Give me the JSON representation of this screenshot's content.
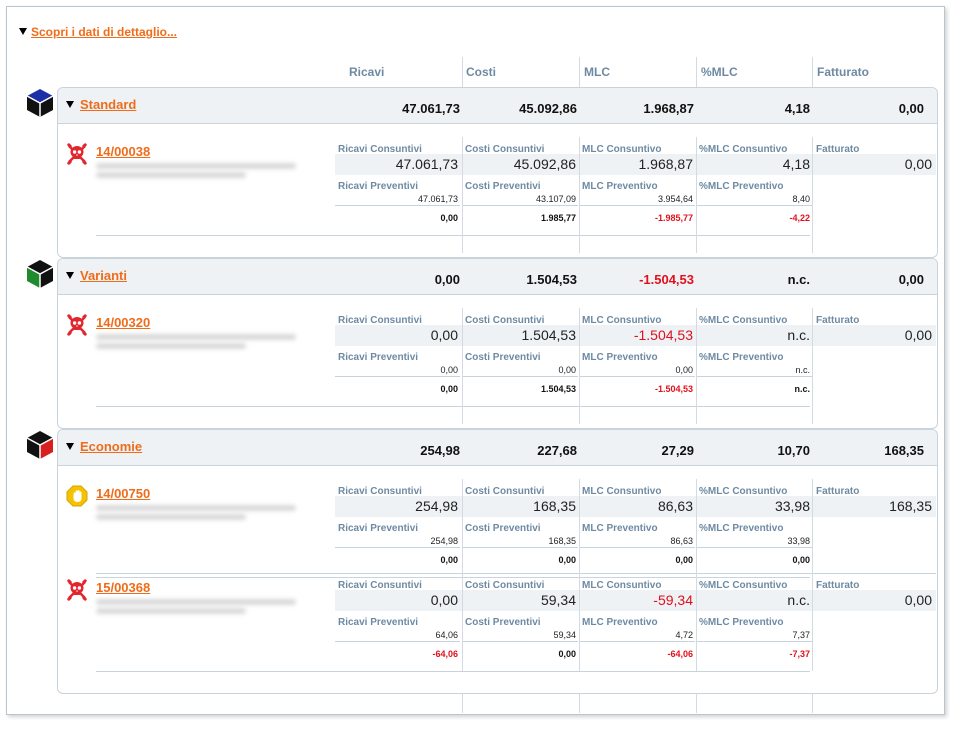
{
  "toggle": {
    "label": "Scopri i dati di dettaglio..."
  },
  "columns": [
    "Ricavi",
    "Costi",
    "MLC",
    "%MLC",
    "Fatturato"
  ],
  "labels": {
    "ricavi_cons": "Ricavi Consuntivi",
    "costi_cons": "Costi Consuntivi",
    "mlc_cons": "MLC Consuntivo",
    "pmlc_cons": "%MLC Consuntivo",
    "fatturato": "Fatturato",
    "ricavi_prev": "Ricavi Preventivi",
    "costi_prev": "Costi Preventivi",
    "mlc_prev": "MLC Preventivo",
    "pmlc_prev": "%MLC Preventivo"
  },
  "groups": [
    {
      "title": "Standard",
      "totals": [
        "47.061,73",
        "45.092,86",
        "1.968,87",
        "4,18",
        "0,00"
      ],
      "projects": [
        {
          "code": "14/00038",
          "icon": "skull-icon",
          "cons": [
            "47.061,73",
            "45.092,86",
            "1.968,87",
            "4,18",
            "0,00"
          ],
          "prev": [
            "47.061,73",
            "43.107,09",
            "3.954,64",
            "8,40"
          ],
          "diff": [
            "0,00",
            "1.985,77",
            "-1.985,77",
            "-4,22"
          ]
        }
      ]
    },
    {
      "title": "Varianti",
      "totals": [
        "0,00",
        "1.504,53",
        "-1.504,53",
        "n.c.",
        "0,00"
      ],
      "projects": [
        {
          "code": "14/00320",
          "icon": "skull-icon",
          "cons": [
            "0,00",
            "1.504,53",
            "-1.504,53",
            "n.c.",
            "0,00"
          ],
          "prev": [
            "0,00",
            "0,00",
            "0,00",
            "n.c."
          ],
          "diff": [
            "0,00",
            "1.504,53",
            "-1.504,53",
            "n.c."
          ]
        }
      ]
    },
    {
      "title": "Economie",
      "totals": [
        "254,98",
        "227,68",
        "27,29",
        "10,70",
        "168,35"
      ],
      "projects": [
        {
          "code": "14/00750",
          "icon": "hand-stop-icon",
          "cons": [
            "254,98",
            "168,35",
            "86,63",
            "33,98",
            "168,35"
          ],
          "prev": [
            "254,98",
            "168,35",
            "86,63",
            "33,98"
          ],
          "diff": [
            "0,00",
            "0,00",
            "0,00",
            "0,00"
          ]
        },
        {
          "code": "15/00368",
          "icon": "skull-icon",
          "cons": [
            "0,00",
            "59,34",
            "-59,34",
            "n.c.",
            "0,00"
          ],
          "prev": [
            "64,06",
            "59,34",
            "4,72",
            "7,37"
          ],
          "diff": [
            "-64,06",
            "0,00",
            "-64,06",
            "-7,37"
          ]
        }
      ]
    }
  ],
  "colors": {
    "accent": "#ef6c1a",
    "label": "#6e8aa3",
    "negative": "#e0101c",
    "header_bg": "#eef2f5"
  }
}
